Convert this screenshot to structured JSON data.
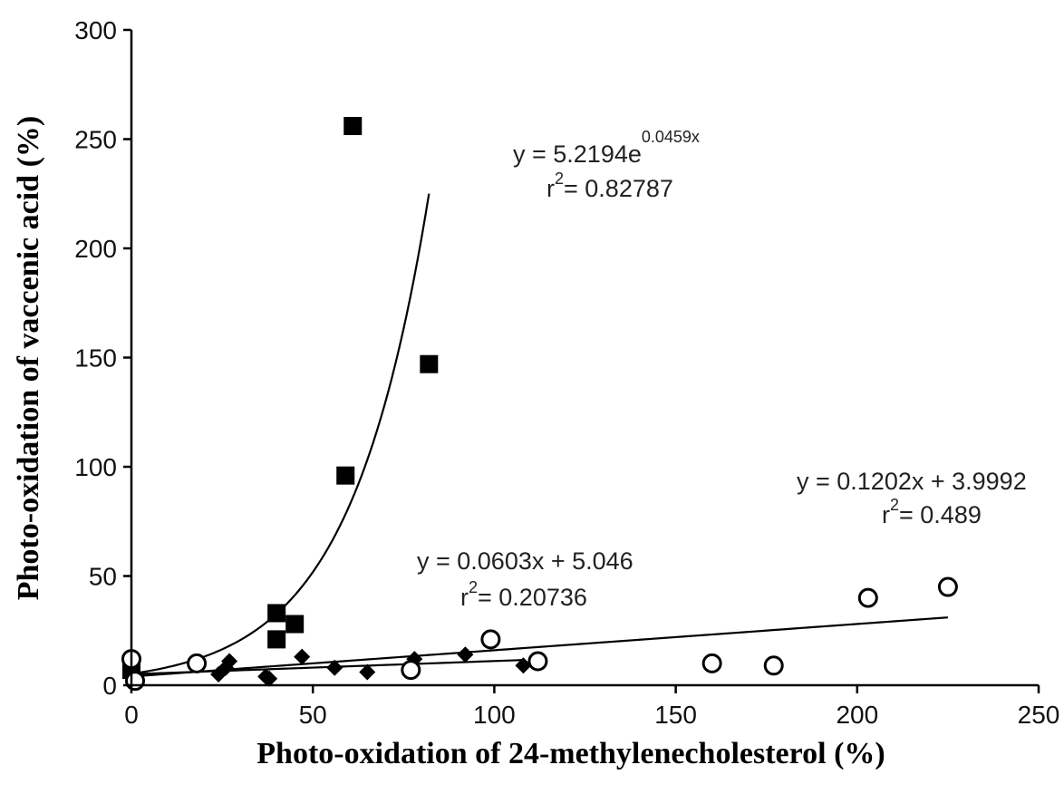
{
  "chart_data": {
    "type": "scatter",
    "title": "",
    "xlabel": "Photo-oxidation of 24-methylenecholesterol (%)",
    "ylabel": "Photo-oxidation of vaccenic acid (%)",
    "xlim": [
      0,
      250
    ],
    "ylim": [
      0,
      300
    ],
    "x_ticks": [
      0,
      50,
      100,
      150,
      200,
      250
    ],
    "y_ticks": [
      0,
      50,
      100,
      150,
      200,
      250,
      300
    ],
    "grid": false,
    "series": [
      {
        "marker": "filled-square",
        "points": [
          {
            "x": 0,
            "y": 7
          },
          {
            "x": 40,
            "y": 21
          },
          {
            "x": 40,
            "y": 33
          },
          {
            "x": 45,
            "y": 28
          },
          {
            "x": 59,
            "y": 96
          },
          {
            "x": 61,
            "y": 256
          },
          {
            "x": 82,
            "y": 147
          }
        ],
        "trendline": {
          "type": "exponential",
          "a": 5.2194,
          "b": 0.0459,
          "x_range": [
            0,
            82
          ]
        },
        "equation": {
          "main": "y = 5.2194e",
          "exponent": "0.0459x",
          "r2_prefix": "r",
          "r2_sup": "2",
          "r2_value": "= 0.82787"
        }
      },
      {
        "marker": "filled-diamond",
        "points": [
          {
            "x": 0,
            "y": 5
          },
          {
            "x": 24,
            "y": 5
          },
          {
            "x": 26,
            "y": 8
          },
          {
            "x": 27,
            "y": 11
          },
          {
            "x": 37,
            "y": 4
          },
          {
            "x": 38,
            "y": 3
          },
          {
            "x": 47,
            "y": 13
          },
          {
            "x": 56,
            "y": 8
          },
          {
            "x": 65,
            "y": 6
          },
          {
            "x": 78,
            "y": 12
          },
          {
            "x": 92,
            "y": 14
          },
          {
            "x": 108,
            "y": 9
          }
        ],
        "trendline": {
          "type": "linear",
          "slope": 0.0603,
          "intercept": 5.046,
          "x_range": [
            0,
            108
          ]
        },
        "equation": {
          "main": "y = 0.0603x + 5.046",
          "r2_prefix": "r",
          "r2_sup": "2",
          "r2_value": "= 0.20736"
        }
      },
      {
        "marker": "open-circle",
        "points": [
          {
            "x": 0,
            "y": 12
          },
          {
            "x": 1,
            "y": 2
          },
          {
            "x": 18,
            "y": 10
          },
          {
            "x": 77,
            "y": 7
          },
          {
            "x": 99,
            "y": 21
          },
          {
            "x": 112,
            "y": 11
          },
          {
            "x": 160,
            "y": 10
          },
          {
            "x": 177,
            "y": 9
          },
          {
            "x": 203,
            "y": 40
          },
          {
            "x": 225,
            "y": 45
          }
        ],
        "trendline": {
          "type": "linear",
          "slope": 0.1202,
          "intercept": 3.9992,
          "x_range": [
            0,
            225
          ]
        },
        "equation": {
          "main": "y = 0.1202x + 3.9992",
          "r2_prefix": "r",
          "r2_sup": "2",
          "r2_value": "= 0.489"
        }
      }
    ]
  }
}
